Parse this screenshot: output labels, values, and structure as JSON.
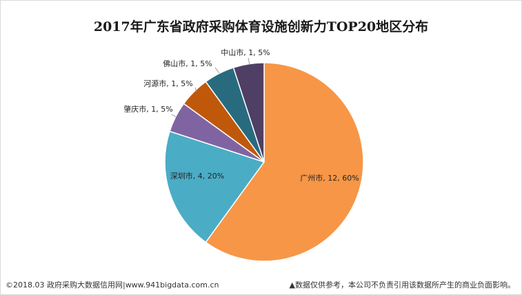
{
  "chart_data": {
    "type": "pie",
    "title": "2017年广东省政府采购体育设施创新力TOP20地区分布",
    "slices": [
      {
        "name": "广州市",
        "value": 12,
        "percent": "60%",
        "label": "广州市, 12, 60%",
        "color": "#F79646"
      },
      {
        "name": "深圳市",
        "value": 4,
        "percent": "20%",
        "label": "深圳市, 4, 20%",
        "color": "#4BACC6"
      },
      {
        "name": "肇庆市",
        "value": 1,
        "percent": "5%",
        "label": "肇庆市, 1, 5%",
        "color": "#8064A2"
      },
      {
        "name": "河源市",
        "value": 1,
        "percent": "5%",
        "label": "河源市, 1, 5%",
        "color": "#C0580C"
      },
      {
        "name": "佛山市",
        "value": 1,
        "percent": "5%",
        "label": "佛山市, 1, 5%",
        "color": "#286B7F"
      },
      {
        "name": "中山市",
        "value": 1,
        "percent": "5%",
        "label": "中山市, 1, 5%",
        "color": "#4F3F65"
      }
    ]
  },
  "footer": {
    "source": "©2018.03 政府采购大数据信用网|www.941bigdata.com.cn",
    "note": "▲数据仅供参考，本公司不负责引用该数据所产生的商业负面影响。"
  }
}
